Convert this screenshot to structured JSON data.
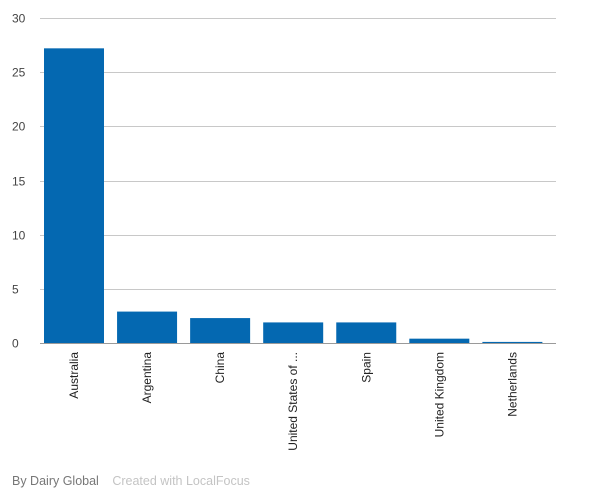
{
  "chart_data": {
    "type": "bar",
    "categories": [
      "Australia",
      "Argentina",
      "China",
      "United States of ...",
      "Spain",
      "United Kingdom",
      "Netherlands"
    ],
    "values": [
      27.2,
      2.9,
      2.3,
      1.9,
      1.9,
      0.4,
      0.1
    ],
    "ylim": [
      0,
      30
    ],
    "yticks": [
      0,
      5,
      10,
      15,
      20,
      25,
      30
    ],
    "grid": true,
    "bar_color": "#0468b1"
  },
  "footer": {
    "credit": "By Dairy Global",
    "tool": "Created with LocalFocus"
  }
}
